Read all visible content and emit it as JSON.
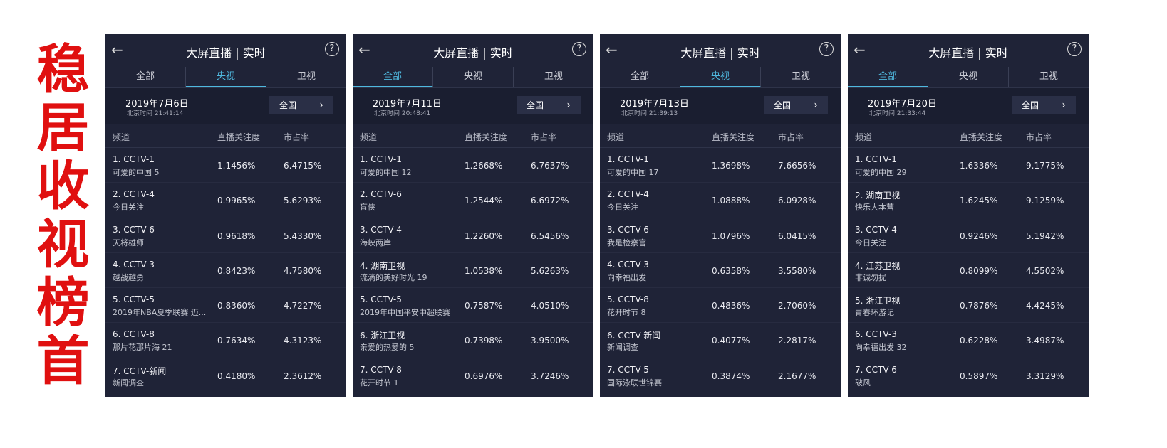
{
  "banner": "稳居收视榜首",
  "panels": [
    {
      "title": "大屏直播 | 实时",
      "tabs": [
        "全部",
        "央视",
        "卫视"
      ],
      "active_tab": 1,
      "date": "2019年7月6日",
      "time": "北京时间 21:41:14",
      "region": "全国",
      "columns": [
        "频道",
        "直播关注度",
        "市占率"
      ],
      "rows": [
        [
          "1. CCTV-1",
          "可爱的中国 5",
          "1.1456%",
          "6.4715%"
        ],
        [
          "2. CCTV-4",
          "今日关注",
          "0.9965%",
          "5.6293%"
        ],
        [
          "3. CCTV-6",
          "天将雄师",
          "0.9618%",
          "5.4330%"
        ],
        [
          "4. CCTV-3",
          "越战越勇",
          "0.8423%",
          "4.7580%"
        ],
        [
          "5. CCTV-5",
          "2019年NBA夏季联赛 迈...",
          "0.8360%",
          "4.7227%"
        ],
        [
          "6. CCTV-8",
          "那片花那片海 21",
          "0.7634%",
          "4.3123%"
        ],
        [
          "7. CCTV-新闻",
          "新闻调查",
          "0.4180%",
          "2.3612%"
        ]
      ]
    },
    {
      "title": "大屏直播 | 实时",
      "tabs": [
        "全部",
        "央视",
        "卫视"
      ],
      "active_tab": 0,
      "date": "2019年7月11日",
      "time": "北京时间 20:48:41",
      "region": "全国",
      "columns": [
        "频道",
        "直播关注度",
        "市占率"
      ],
      "rows": [
        [
          "1. CCTV-1",
          "可爱的中国 12",
          "1.2668%",
          "6.7637%"
        ],
        [
          "2. CCTV-6",
          "盲侠",
          "1.2544%",
          "6.6972%"
        ],
        [
          "3. CCTV-4",
          "海峡两岸",
          "1.2260%",
          "6.5456%"
        ],
        [
          "4. 湖南卫视",
          "流淌的美好时光 19",
          "1.0538%",
          "5.6263%"
        ],
        [
          "5. CCTV-5",
          "2019年中国平安中超联赛",
          "0.7587%",
          "4.0510%"
        ],
        [
          "6. 浙江卫视",
          "亲爱的热爱的 5",
          "0.7398%",
          "3.9500%"
        ],
        [
          "7. CCTV-8",
          "花开时节 1",
          "0.6976%",
          "3.7246%"
        ]
      ]
    },
    {
      "title": "大屏直播 | 实时",
      "tabs": [
        "全部",
        "央视",
        "卫视"
      ],
      "active_tab": 1,
      "date": "2019年7月13日",
      "time": "北京时间 21:39:13",
      "region": "全国",
      "columns": [
        "频道",
        "直播关注度",
        "市占率"
      ],
      "rows": [
        [
          "1. CCTV-1",
          "可爱的中国 17",
          "1.3698%",
          "7.6656%"
        ],
        [
          "2. CCTV-4",
          "今日关注",
          "1.0888%",
          "6.0928%"
        ],
        [
          "3. CCTV-6",
          "我是检察官",
          "1.0796%",
          "6.0415%"
        ],
        [
          "4. CCTV-3",
          "向幸福出发",
          "0.6358%",
          "3.5580%"
        ],
        [
          "5. CCTV-8",
          "花开时节 8",
          "0.4836%",
          "2.7060%"
        ],
        [
          "6. CCTV-新闻",
          "新闻调查",
          "0.4077%",
          "2.2817%"
        ],
        [
          "7. CCTV-5",
          "国际泳联世锦赛",
          "0.3874%",
          "2.1677%"
        ]
      ]
    },
    {
      "title": "大屏直播 | 实时",
      "tabs": [
        "全部",
        "央视",
        "卫视"
      ],
      "active_tab": 0,
      "date": "2019年7月20日",
      "time": "北京时间 21:33:44",
      "region": "全国",
      "columns": [
        "频道",
        "直播关注度",
        "市占率"
      ],
      "rows": [
        [
          "1. CCTV-1",
          "可爱的中国 29",
          "1.6336%",
          "9.1775%"
        ],
        [
          "2. 湖南卫视",
          "快乐大本营",
          "1.6245%",
          "9.1259%"
        ],
        [
          "3. CCTV-4",
          "今日关注",
          "0.9246%",
          "5.1942%"
        ],
        [
          "4. 江苏卫视",
          "非诚勿扰",
          "0.8099%",
          "4.5502%"
        ],
        [
          "5. 浙江卫视",
          "青春环游记",
          "0.7876%",
          "4.4245%"
        ],
        [
          "6. CCTV-3",
          "向幸福出发 32",
          "0.6228%",
          "3.4987%"
        ],
        [
          "7. CCTV-6",
          "破风",
          "0.5897%",
          "3.3129%"
        ]
      ]
    }
  ]
}
